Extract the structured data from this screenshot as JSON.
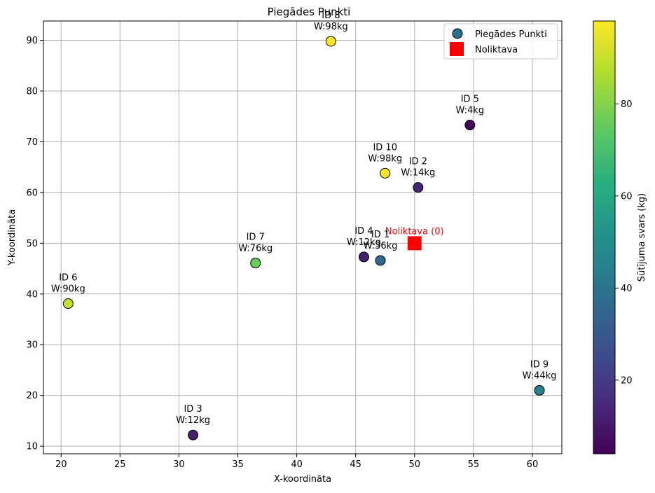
{
  "chart_data": {
    "type": "scatter",
    "title": "Piegādes Punkti",
    "xlabel": "X-koordināta",
    "ylabel": "Y-koordināta",
    "xlim": [
      18.5,
      62.5
    ],
    "ylim": [
      8.5,
      93.8
    ],
    "xticks": [
      20,
      25,
      30,
      35,
      40,
      45,
      50,
      55,
      60
    ],
    "yticks": [
      10,
      20,
      30,
      40,
      50,
      60,
      70,
      80,
      90
    ],
    "grid": true,
    "legend_position": "top-right",
    "legend": [
      "Piegādes Punkti",
      "Noliktava"
    ],
    "series": [
      {
        "name": "Piegādes Punkti",
        "points": [
          {
            "id_label": "ID 1",
            "weight_label": "W:36kg",
            "x": 47.1,
            "y": 46.6,
            "weight": 36
          },
          {
            "id_label": "ID 2",
            "weight_label": "W:14kg",
            "x": 50.3,
            "y": 61.0,
            "weight": 14
          },
          {
            "id_label": "ID 3",
            "weight_label": "W:12kg",
            "x": 31.2,
            "y": 12.2,
            "weight": 12
          },
          {
            "id_label": "ID 4",
            "weight_label": "W:12kg",
            "x": 45.7,
            "y": 47.3,
            "weight": 12
          },
          {
            "id_label": "ID 5",
            "weight_label": "W:4kg",
            "x": 54.7,
            "y": 73.3,
            "weight": 4
          },
          {
            "id_label": "ID 6",
            "weight_label": "W:90kg",
            "x": 20.6,
            "y": 38.1,
            "weight": 90
          },
          {
            "id_label": "ID 7",
            "weight_label": "W:76kg",
            "x": 36.5,
            "y": 46.1,
            "weight": 76
          },
          {
            "id_label": "ID 8",
            "weight_label": "W:98kg",
            "x": 42.9,
            "y": 89.8,
            "weight": 98
          },
          {
            "id_label": "ID 9",
            "weight_label": "W:44kg",
            "x": 60.6,
            "y": 21.0,
            "weight": 44
          },
          {
            "id_label": "ID 10",
            "weight_label": "W:98kg",
            "x": 47.5,
            "y": 63.8,
            "weight": 98
          }
        ]
      },
      {
        "name": "Noliktava",
        "points": [
          {
            "label": "Noliktava (0)",
            "x": 50.0,
            "y": 50.0
          }
        ]
      }
    ],
    "colorbar": {
      "label": "Sūtījuma svars (kg)",
      "min": 4,
      "max": 98,
      "ticks": [
        20,
        40,
        60,
        80
      ],
      "colormap": "viridis"
    },
    "colors": {
      "warehouse": "#ff0000",
      "grid": "#b0b0b0",
      "marker_edge": "#000000"
    }
  }
}
